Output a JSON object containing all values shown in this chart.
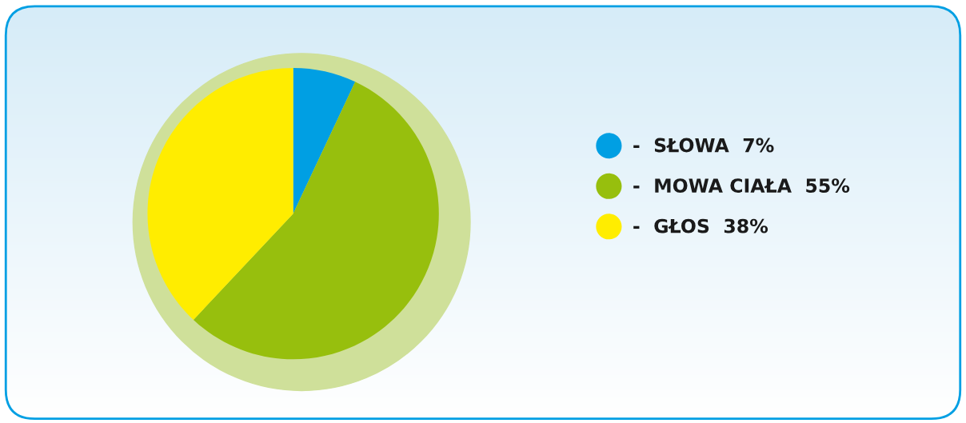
{
  "chart_data": {
    "type": "pie",
    "categories": [
      "-  SŁOWA",
      "-  MOWA CIAŁA",
      "-  GŁOS"
    ],
    "values": [
      7,
      55,
      38
    ],
    "value_labels": [
      "7%",
      "55%",
      "38%"
    ],
    "colors": [
      "#009fe3",
      "#97bf0d",
      "#ffed00"
    ],
    "legend": "right"
  }
}
